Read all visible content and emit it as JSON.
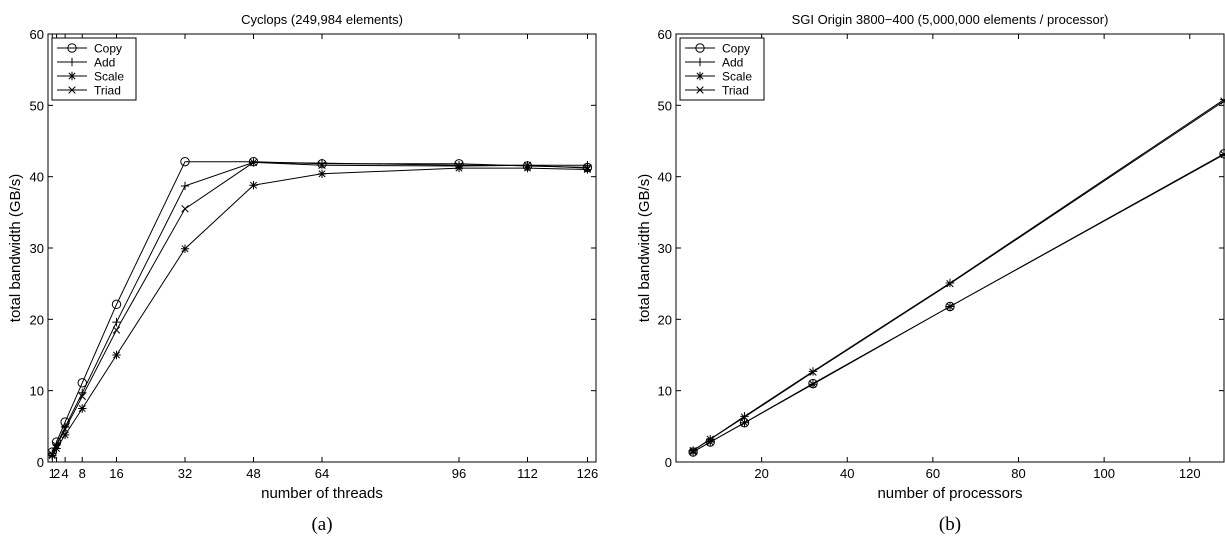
{
  "chart_data": [
    {
      "type": "line",
      "title": "Cyclops (249,984 elements)",
      "xlabel": "number of threads",
      "ylabel": "total bandwidth (GB/s)",
      "caption": "(a)",
      "xlim": [
        0,
        128
      ],
      "ylim": [
        0,
        60
      ],
      "xticks": [
        1,
        2,
        4,
        8,
        16,
        32,
        48,
        64,
        96,
        112,
        126
      ],
      "xtick_labels": [
        "1",
        "2",
        "4",
        "8",
        "16",
        "32",
        "48",
        "64",
        "96",
        "112",
        "126"
      ],
      "yticks": [
        0,
        10,
        20,
        30,
        40,
        50,
        60
      ],
      "ytick_labels": [
        "0",
        "10",
        "20",
        "30",
        "40",
        "50",
        "60"
      ],
      "grid": false,
      "legend": "top-left",
      "x": [
        1,
        2,
        4,
        8,
        16,
        32,
        48,
        64,
        96,
        112,
        126
      ],
      "series": [
        {
          "name": "Copy",
          "marker": "circle",
          "values": [
            1.4,
            2.8,
            5.6,
            11.1,
            22.1,
            42.1,
            42.1,
            41.8,
            41.8,
            41.5,
            41.3
          ]
        },
        {
          "name": "Add",
          "marker": "plus",
          "values": [
            1.2,
            2.4,
            4.9,
            9.7,
            19.6,
            38.7,
            42.0,
            41.9,
            41.6,
            41.6,
            41.6
          ]
        },
        {
          "name": "Scale",
          "marker": "asterisk",
          "values": [
            0.9,
            1.9,
            3.8,
            7.5,
            15.0,
            29.9,
            38.8,
            40.4,
            41.2,
            41.2,
            41.0
          ]
        },
        {
          "name": "Triad",
          "marker": "x",
          "values": [
            1.1,
            2.3,
            4.6,
            9.2,
            18.5,
            35.5,
            42.0,
            41.6,
            41.5,
            41.6,
            41.2
          ]
        }
      ]
    },
    {
      "type": "line",
      "title": "SGI Origin 3800−400 (5,000,000 elements / processor)",
      "xlabel": "number of processors",
      "ylabel": "total bandwidth (GB/s)",
      "caption": "(b)",
      "xlim": [
        0,
        128
      ],
      "ylim": [
        0,
        60
      ],
      "xticks": [
        20,
        40,
        60,
        80,
        100,
        120
      ],
      "xtick_labels": [
        "20",
        "40",
        "60",
        "80",
        "100",
        "120"
      ],
      "yticks": [
        0,
        10,
        20,
        30,
        40,
        50,
        60
      ],
      "ytick_labels": [
        "0",
        "10",
        "20",
        "30",
        "40",
        "50",
        "60"
      ],
      "grid": false,
      "legend": "top-left",
      "x": [
        4,
        8,
        16,
        32,
        64,
        128
      ],
      "series": [
        {
          "name": "Copy",
          "marker": "circle",
          "values": [
            1.4,
            2.8,
            5.5,
            11.0,
            21.8,
            43.2
          ]
        },
        {
          "name": "Add",
          "marker": "plus",
          "values": [
            1.6,
            3.2,
            6.4,
            12.7,
            25.1,
            50.8
          ]
        },
        {
          "name": "Scale",
          "marker": "asterisk",
          "values": [
            1.4,
            2.8,
            5.5,
            10.9,
            21.8,
            43.1
          ]
        },
        {
          "name": "Triad",
          "marker": "x",
          "values": [
            1.6,
            3.2,
            6.3,
            12.6,
            25.0,
            50.6
          ]
        }
      ]
    }
  ]
}
